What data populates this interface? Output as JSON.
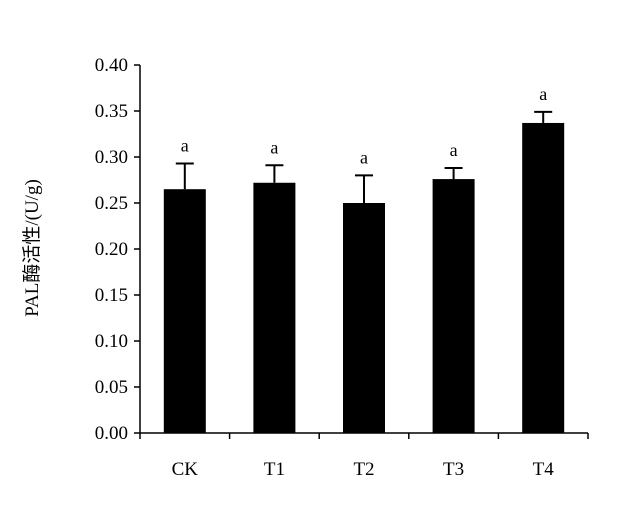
{
  "chart_data": {
    "type": "bar",
    "title": "",
    "xlabel": "",
    "ylabel": "PAL酶活性/(U/g)",
    "ylim": [
      0,
      0.4
    ],
    "yticks": [
      0.0,
      0.05,
      0.1,
      0.15,
      0.2,
      0.25,
      0.3,
      0.35,
      0.4
    ],
    "ytick_labels": [
      "0.00",
      "0.05",
      "0.10",
      "0.15",
      "0.20",
      "0.25",
      "0.30",
      "0.35",
      "0.40"
    ],
    "categories": [
      "CK",
      "T1",
      "T2",
      "T3",
      "T4"
    ],
    "values": [
      0.265,
      0.272,
      0.25,
      0.276,
      0.337
    ],
    "error_upper": [
      0.028,
      0.019,
      0.03,
      0.012,
      0.012
    ],
    "significance": [
      "a",
      "a",
      "a",
      "a",
      "a"
    ],
    "bar_color": "#000000",
    "grid": false,
    "legend": "none"
  }
}
